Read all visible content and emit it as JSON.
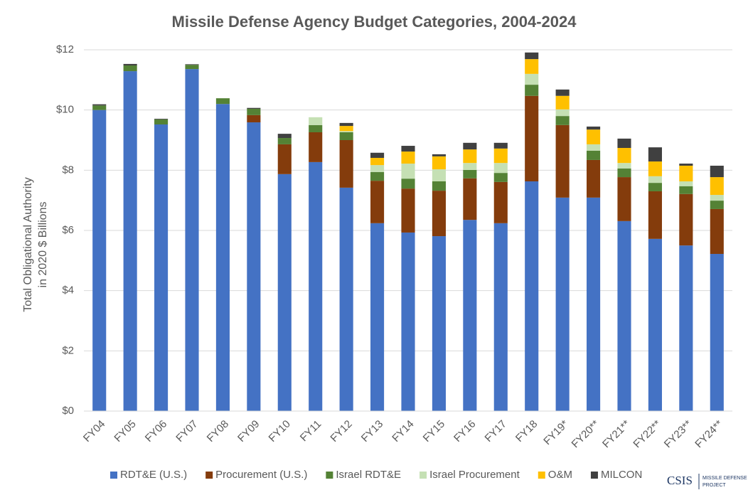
{
  "chart_data": {
    "type": "stacked_bar",
    "title": "Missile Defense Agency Budget Categories, 2004-2024",
    "ylabel": [
      "Total Obligational Authority",
      "in 2020 $ Billions"
    ],
    "categories": [
      "FY04",
      "FY05",
      "FY06",
      "FY07",
      "FY08",
      "FY09",
      "FY10",
      "FY11",
      "FY12",
      "FY13",
      "FY14",
      "FY15",
      "FY16",
      "FY17",
      "FY18",
      "FY19*",
      "FY20**",
      "FY21**",
      "FY22**",
      "FY23**",
      "FY24**"
    ],
    "series": [
      {
        "name": "RDT&E (U.S.)",
        "color": "#4472c4",
        "values": [
          10.0,
          11.29,
          9.52,
          11.36,
          10.2,
          9.59,
          7.87,
          8.27,
          7.42,
          6.24,
          5.93,
          5.81,
          6.35,
          6.24,
          7.63,
          7.09,
          7.09,
          6.31,
          5.72,
          5.5,
          5.22
        ]
      },
      {
        "name": "Procurement (U.S.)",
        "color": "#843c0c",
        "values": [
          0,
          0,
          0,
          0,
          0,
          0.24,
          0.99,
          0.99,
          1.58,
          1.41,
          1.46,
          1.51,
          1.38,
          1.37,
          2.84,
          2.41,
          1.25,
          1.46,
          1.58,
          1.71,
          1.49
        ]
      },
      {
        "name": "Israel RDT&E",
        "color": "#548235",
        "values": [
          0.15,
          0.19,
          0.17,
          0.14,
          0.19,
          0.21,
          0.21,
          0.24,
          0.26,
          0.29,
          0.33,
          0.31,
          0.28,
          0.3,
          0.37,
          0.3,
          0.31,
          0.29,
          0.28,
          0.26,
          0.28
        ]
      },
      {
        "name": "Israel Procurement",
        "color": "#c5e0b4",
        "values": [
          0,
          0,
          0,
          0,
          0,
          0,
          0,
          0.26,
          0.04,
          0.23,
          0.5,
          0.4,
          0.23,
          0.33,
          0.36,
          0.22,
          0.21,
          0.18,
          0.22,
          0.16,
          0.19
        ]
      },
      {
        "name": "O&M",
        "color": "#ffc000",
        "values": [
          0,
          0,
          0,
          0,
          0,
          0,
          0,
          0,
          0.17,
          0.24,
          0.4,
          0.43,
          0.45,
          0.48,
          0.49,
          0.45,
          0.49,
          0.5,
          0.49,
          0.52,
          0.59
        ]
      },
      {
        "name": "MILCON",
        "color": "#404040",
        "values": [
          0.04,
          0.05,
          0.02,
          0.02,
          0,
          0.03,
          0.14,
          0,
          0.1,
          0.17,
          0.19,
          0.07,
          0.22,
          0.19,
          0.22,
          0.21,
          0.1,
          0.31,
          0.47,
          0.07,
          0.38
        ]
      }
    ],
    "ylim": [
      0,
      12
    ],
    "yticks": [
      {
        "value": 0,
        "label": "$0"
      },
      {
        "value": 2,
        "label": "$2"
      },
      {
        "value": 4,
        "label": "$4"
      },
      {
        "value": 6,
        "label": "$6"
      },
      {
        "value": 8,
        "label": "$8"
      },
      {
        "value": 10,
        "label": "$10"
      },
      {
        "value": 12,
        "label": "$12"
      }
    ],
    "grid": true,
    "legend": "bottom"
  },
  "logo": {
    "name": "CSIS",
    "line1": "MISSILE DEFENSE",
    "line2": "PROJECT"
  }
}
